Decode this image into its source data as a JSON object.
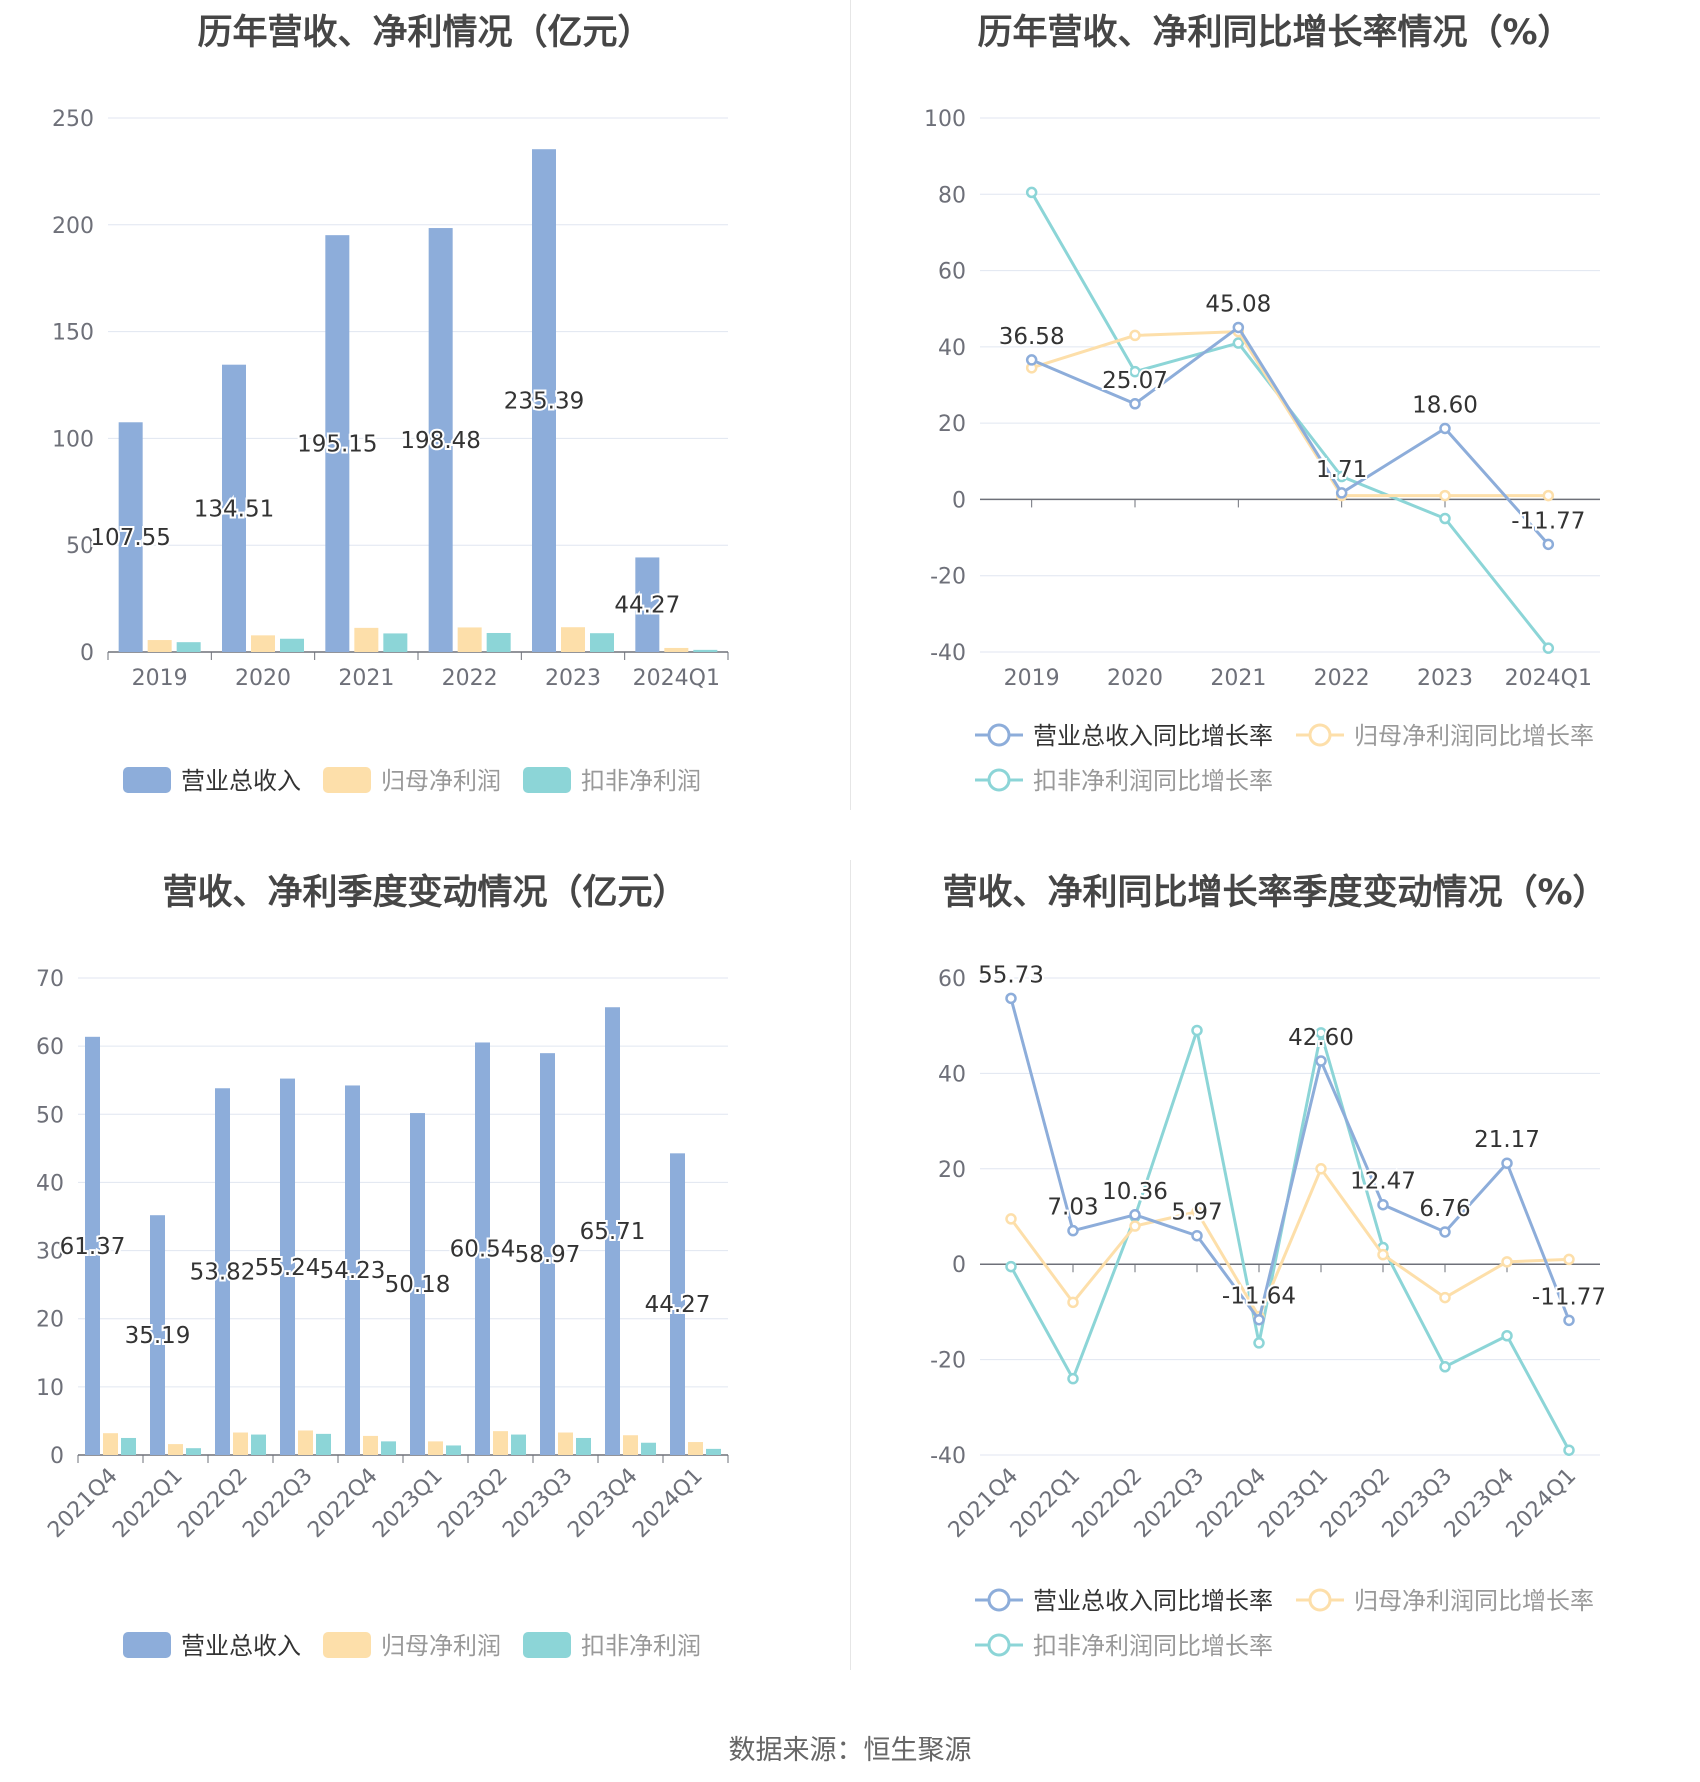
{
  "source_label": "数据来源：恒生聚源",
  "colors": {
    "revenue": "#8dadda",
    "net_profit": "#fddfaa",
    "deducted_profit": "#8cd5d7"
  },
  "chart_data": [
    {
      "type": "bar",
      "title": "历年营收、净利情况（亿元）",
      "categories": [
        "2019",
        "2020",
        "2021",
        "2022",
        "2023",
        "2024Q1"
      ],
      "ylim": [
        0,
        250
      ],
      "yticks": [
        "0",
        "50",
        "100",
        "150",
        "200",
        "250"
      ],
      "grid": true,
      "legend_position": "bottom",
      "series": [
        {
          "name": "营业总收入",
          "values": [
            107.55,
            134.51,
            195.15,
            198.48,
            235.39,
            44.27
          ],
          "labels": [
            "107.55",
            "134.51",
            "195.15",
            "198.48",
            "235.39",
            "44.27"
          ]
        },
        {
          "name": "归母净利润",
          "values": [
            5.6,
            7.8,
            11.3,
            11.5,
            11.6,
            1.9
          ],
          "labels": []
        },
        {
          "name": "扣非净利润",
          "values": [
            4.6,
            6.2,
            8.7,
            8.9,
            8.8,
            1.0
          ],
          "labels": []
        }
      ]
    },
    {
      "type": "line",
      "title": "历年营收、净利同比增长率情况（%）",
      "categories": [
        "2019",
        "2020",
        "2021",
        "2022",
        "2023",
        "2024Q1"
      ],
      "ylim": [
        -40,
        100
      ],
      "yticks": [
        "-40",
        "-20",
        "0",
        "20",
        "40",
        "60",
        "80",
        "100"
      ],
      "grid": true,
      "legend_position": "bottom",
      "series": [
        {
          "name": "营业总收入同比增长率",
          "values": [
            36.58,
            25.07,
            45.08,
            1.71,
            18.6,
            -11.77
          ],
          "labels": [
            "36.58",
            "25.07",
            "45.08",
            "1.71",
            "18.60",
            "-11.77"
          ]
        },
        {
          "name": "归母净利润同比增长率",
          "values": [
            34.5,
            43.0,
            44.0,
            1.0,
            1.0,
            1.0
          ],
          "labels": []
        },
        {
          "name": "扣非净利润同比增长率",
          "values": [
            80.5,
            33.5,
            41.0,
            6.0,
            -5.0,
            -39.0
          ],
          "labels": []
        }
      ]
    },
    {
      "type": "bar",
      "title": "营收、净利季度变动情况（亿元）",
      "categories": [
        "2021Q4",
        "2022Q1",
        "2022Q2",
        "2022Q3",
        "2022Q4",
        "2023Q1",
        "2023Q2",
        "2023Q3",
        "2023Q4",
        "2024Q1"
      ],
      "ylim": [
        0,
        70
      ],
      "yticks": [
        "0",
        "10",
        "20",
        "30",
        "40",
        "50",
        "60",
        "70"
      ],
      "grid": true,
      "legend_position": "bottom",
      "series": [
        {
          "name": "营业总收入",
          "values": [
            61.37,
            35.19,
            53.82,
            55.24,
            54.23,
            50.18,
            60.54,
            58.97,
            65.71,
            44.27
          ],
          "labels": [
            "61.37",
            "35.19",
            "53.82",
            "55.24",
            "54.23",
            "50.18",
            "60.54",
            "58.97",
            "65.71",
            "44.27"
          ]
        },
        {
          "name": "归母净利润",
          "values": [
            3.2,
            1.6,
            3.3,
            3.6,
            2.8,
            2.0,
            3.5,
            3.3,
            2.9,
            1.9
          ],
          "labels": []
        },
        {
          "name": "扣非净利润",
          "values": [
            2.5,
            1.0,
            3.0,
            3.1,
            2.0,
            1.4,
            3.0,
            2.5,
            1.8,
            0.9
          ],
          "labels": []
        }
      ]
    },
    {
      "type": "line",
      "title": "营收、净利同比增长率季度变动情况（%）",
      "categories": [
        "2021Q4",
        "2022Q1",
        "2022Q2",
        "2022Q3",
        "2022Q4",
        "2023Q1",
        "2023Q2",
        "2023Q3",
        "2023Q4",
        "2024Q1"
      ],
      "ylim": [
        -40,
        60
      ],
      "yticks": [
        "-40",
        "-20",
        "0",
        "20",
        "40",
        "60"
      ],
      "grid": true,
      "legend_position": "bottom",
      "series": [
        {
          "name": "营业总收入同比增长率",
          "values": [
            55.73,
            7.03,
            10.36,
            5.97,
            -11.64,
            42.6,
            12.47,
            6.76,
            21.17,
            -11.77
          ],
          "labels": [
            "55.73",
            "7.03",
            "10.36",
            "5.97",
            "-11.64",
            "42.60",
            "12.47",
            "6.76",
            "21.17",
            "-11.77"
          ]
        },
        {
          "name": "归母净利润同比增长率",
          "values": [
            9.5,
            -8.0,
            8.0,
            11.0,
            -11.0,
            20.0,
            2.0,
            -7.0,
            0.5,
            1.0
          ],
          "labels": []
        },
        {
          "name": "扣非净利润同比增长率",
          "values": [
            -0.5,
            -24.0,
            10.0,
            49.0,
            -16.5,
            48.5,
            3.5,
            -21.5,
            -15.0,
            -39.0
          ],
          "labels": []
        }
      ]
    }
  ]
}
